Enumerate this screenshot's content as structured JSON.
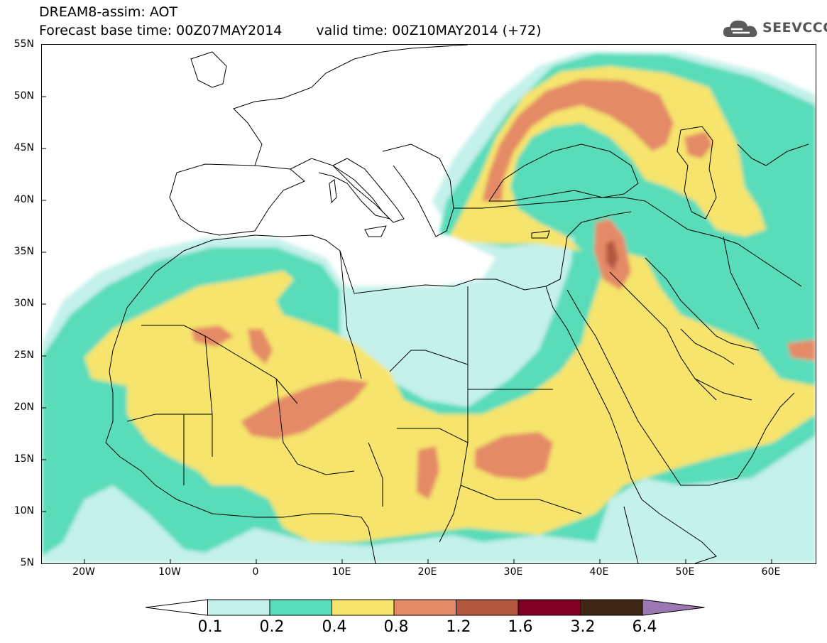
{
  "header": {
    "line1": "DREAM8-assim: AOT",
    "forecast_base": "Forecast base time: 00Z07MAY2014",
    "valid_time": "valid time: 00Z10MAY2014 (+72)"
  },
  "logo": {
    "text": "SEEVCCC",
    "icon": "cloud-icon"
  },
  "map": {
    "variable": "AOT",
    "lon_range": [
      -25,
      65
    ],
    "lat_range": [
      5,
      55
    ],
    "lat_ticks": [
      "55N",
      "50N",
      "45N",
      "40N",
      "35N",
      "30N",
      "25N",
      "20N",
      "15N",
      "10N",
      "5N"
    ],
    "lon_ticks": [
      "20W",
      "10W",
      "0",
      "10E",
      "20E",
      "30E",
      "40E",
      "50E",
      "60E"
    ]
  },
  "colorbar": {
    "levels": [
      "0.1",
      "0.2",
      "0.4",
      "0.8",
      "1.2",
      "1.6",
      "3.2",
      "6.4"
    ],
    "colors": [
      "#ffffff",
      "#c4f1ea",
      "#58dcb9",
      "#f6e46c",
      "#e48a66",
      "#b3573f",
      "#800026",
      "#3e2715",
      "#9b78b4"
    ]
  }
}
